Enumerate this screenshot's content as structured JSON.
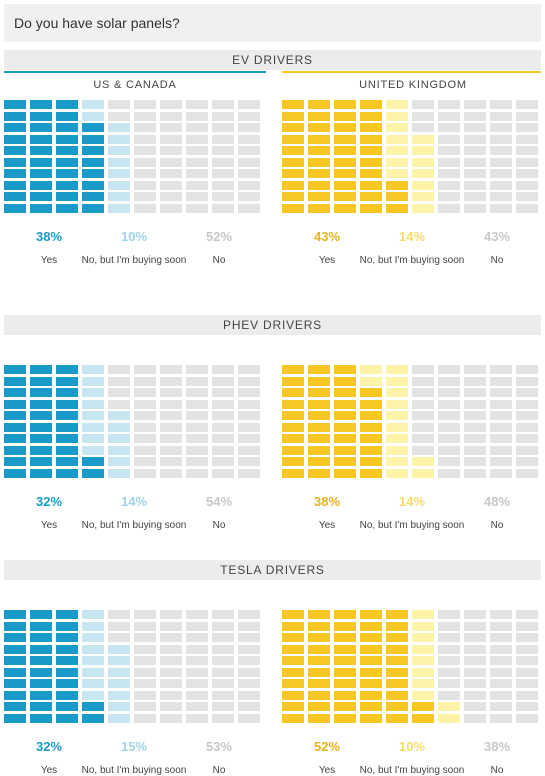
{
  "question": "Do you have solar panels?",
  "colors": {
    "us_yes": "#1a9ac8",
    "us_soon": "#c7e6f2",
    "uk_yes": "#f7c823",
    "uk_soon": "#fdf3a9",
    "no": "#e3e3e3",
    "no_text": "#c8c8c8",
    "line_us": "#1a9ac8",
    "line_uk": "#f7c823"
  },
  "regions": [
    "US & CANADA",
    "UNITED KINGDOM"
  ],
  "labels": {
    "yes": "Yes",
    "soon": "No, but I'm buying soon",
    "no": "No"
  },
  "chart_data": [
    {
      "type": "waffle",
      "title": "EV DRIVERS",
      "series": [
        {
          "name": "US & CANADA",
          "values": {
            "Yes": 38,
            "No, but I'm buying soon": 10,
            "No": 52
          }
        },
        {
          "name": "UNITED KINGDOM",
          "values": {
            "Yes": 43,
            "No, but I'm buying soon": 14,
            "No": 43
          }
        }
      ]
    },
    {
      "type": "waffle",
      "title": "PHEV DRIVERS",
      "series": [
        {
          "name": "US & CANADA",
          "values": {
            "Yes": 32,
            "No, but I'm buying soon": 14,
            "No": 54
          }
        },
        {
          "name": "UNITED KINGDOM",
          "values": {
            "Yes": 38,
            "No, but I'm buying soon": 14,
            "No": 48
          }
        }
      ]
    },
    {
      "type": "waffle",
      "title": "TESLA DRIVERS",
      "series": [
        {
          "name": "US & CANADA",
          "values": {
            "Yes": 32,
            "No, but I'm buying soon": 15,
            "No": 53
          }
        },
        {
          "name": "UNITED KINGDOM",
          "values": {
            "Yes": 52,
            "No, but I'm buying soon": 10,
            "No": 38
          }
        }
      ]
    }
  ]
}
